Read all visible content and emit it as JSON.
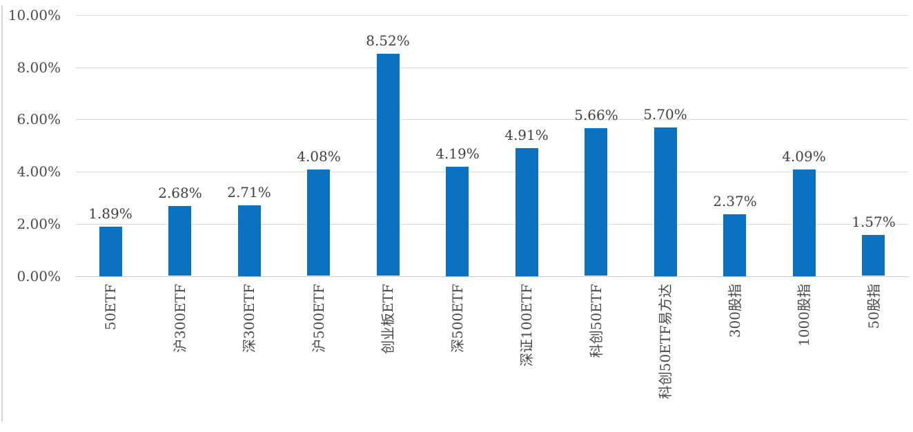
{
  "chart_data": {
    "type": "bar",
    "title": "",
    "xlabel": "",
    "ylabel": "",
    "categories": [
      "50ETF",
      "沪300ETF",
      "深300ETF",
      "沪500ETF",
      "创业板ETF",
      "深500ETF",
      "深证100ETF",
      "科创50ETF",
      "科创50ETF易方达",
      "300股指",
      "1000股指",
      "50股指"
    ],
    "values": [
      1.89,
      2.68,
      2.71,
      4.08,
      8.52,
      4.19,
      4.91,
      5.66,
      5.7,
      2.37,
      4.09,
      1.57
    ],
    "data_labels": [
      "1.89%",
      "2.68%",
      "2.71%",
      "4.08%",
      "8.52%",
      "4.19%",
      "4.91%",
      "5.66%",
      "5.70%",
      "2.37%",
      "4.09%",
      "1.57%"
    ],
    "y_ticks": [
      {
        "value": 0,
        "label": "0.00%"
      },
      {
        "value": 2,
        "label": "2.00%"
      },
      {
        "value": 4,
        "label": "4.00%"
      },
      {
        "value": 6,
        "label": "6.00%"
      },
      {
        "value": 8,
        "label": "8.00%"
      },
      {
        "value": 10,
        "label": "10.00%"
      }
    ],
    "ylim": [
      0,
      10
    ],
    "grid": true,
    "legend": "none",
    "colors": {
      "bar": "#0b72c1",
      "data_label": "#404040",
      "axis_label": "#4a4a4a",
      "gridline": "#d9d9d9",
      "baseline": "#c6c6c6"
    }
  }
}
